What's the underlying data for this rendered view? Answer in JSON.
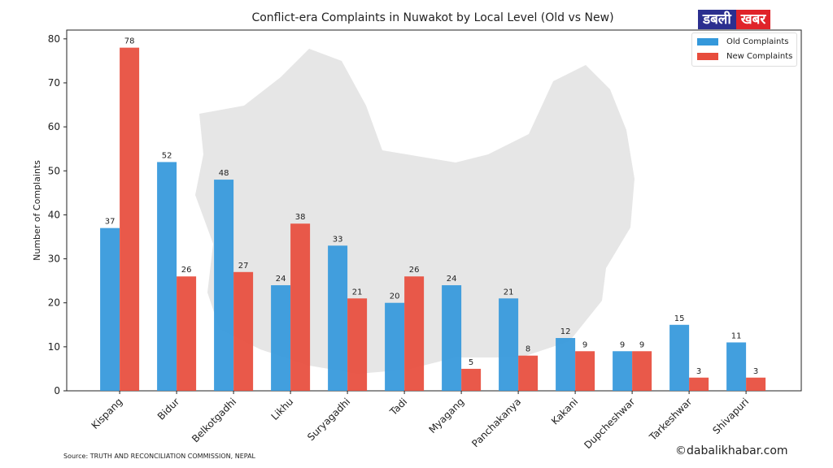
{
  "chart_data": {
    "type": "bar",
    "title": "Conflict-era Complaints in Nuwakot by Local Level (Old vs New)",
    "xlabel": "",
    "ylabel": "Number of Complaints",
    "ylim": [
      0,
      82
    ],
    "yticks": [
      0,
      10,
      20,
      30,
      40,
      50,
      60,
      70,
      80
    ],
    "grid": false,
    "legend_position": "top-right",
    "categories": [
      "Kispang",
      "Bidur",
      "Belkotgadhi",
      "Likhu",
      "Suryagadhi",
      "Tadi",
      "Myagang",
      "Panchakanya",
      "Kakani",
      "Dupcheshwar",
      "Tarkeshwar",
      "Shivapuri"
    ],
    "series": [
      {
        "name": "Old Complaints",
        "color": "#3498db",
        "values": [
          37,
          52,
          48,
          24,
          33,
          20,
          24,
          21,
          12,
          9,
          15,
          11
        ]
      },
      {
        "name": "New Complaints",
        "color": "#e74c3c",
        "values": [
          78,
          26,
          27,
          38,
          21,
          26,
          5,
          8,
          9,
          9,
          3,
          3
        ]
      }
    ]
  },
  "logo": {
    "part1": "डबली",
    "part2": "खबर"
  },
  "source": "Source: TRUTH AND RECONCILIATION COMMISSION, NEPAL",
  "copyright": "©dabalikhabar.com"
}
